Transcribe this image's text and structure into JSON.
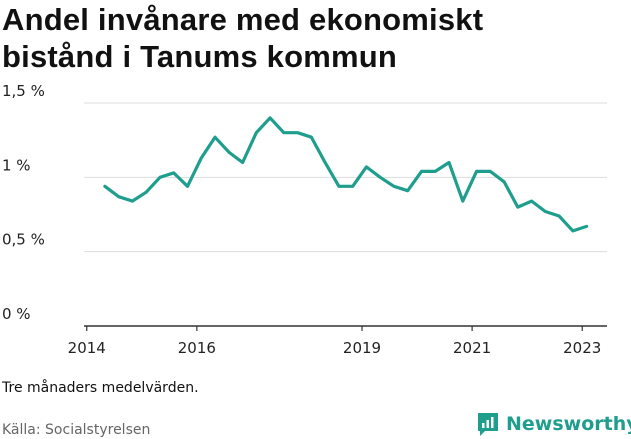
{
  "title": "Andel invånare med ekonomiskt bistånd i Tanums kommun",
  "note": "Tre månaders medelvärden.",
  "source": "Källa: Socialstyrelsen",
  "brand": {
    "name": "Newsworthy",
    "color": "#1f9e8e",
    "icon": "newsworthy-chart-icon"
  },
  "chart_data": {
    "type": "line",
    "title": "Andel invånare med ekonomiskt bistånd i Tanums kommun",
    "xlabel": "",
    "ylabel": "",
    "ylim": [
      0,
      1.5
    ],
    "xlim": [
      2013.95,
      2023.45
    ],
    "y_ticks": [
      {
        "value": 0,
        "label": "0 %"
      },
      {
        "value": 0.5,
        "label": "0,5 %"
      },
      {
        "value": 1,
        "label": "1 %"
      },
      {
        "value": 1.5,
        "label": "1,5 %"
      }
    ],
    "x_ticks": [
      {
        "value": 2014,
        "label": "2014"
      },
      {
        "value": 2016,
        "label": "2016"
      },
      {
        "value": 2019,
        "label": "2019"
      },
      {
        "value": 2021,
        "label": "2021"
      },
      {
        "value": 2023,
        "label": "2023"
      }
    ],
    "grid": true,
    "line_color": "#1f9e8e",
    "series": [
      {
        "x": [
          2014.33,
          2014.58,
          2014.83,
          2015.08,
          2015.33,
          2015.58,
          2015.83,
          2016.08,
          2016.33,
          2016.58,
          2016.83,
          2017.08,
          2017.33,
          2017.58,
          2017.83,
          2018.08,
          2018.33,
          2018.58,
          2018.83,
          2019.08,
          2019.33,
          2019.58,
          2019.83,
          2020.08,
          2020.33,
          2020.58,
          2020.83,
          2021.08,
          2021.33,
          2021.58,
          2021.83,
          2022.08,
          2022.33,
          2022.58,
          2022.83,
          2023.08
        ],
        "values": [
          0.94,
          0.87,
          0.84,
          0.9,
          1.0,
          1.03,
          0.94,
          1.13,
          1.27,
          1.17,
          1.1,
          1.3,
          1.4,
          1.3,
          1.3,
          1.27,
          1.1,
          0.94,
          0.94,
          1.07,
          1.0,
          0.94,
          0.91,
          1.04,
          1.04,
          1.1,
          0.84,
          1.04,
          1.04,
          0.97,
          0.8,
          0.84,
          0.77,
          0.74,
          0.64,
          0.67
        ]
      }
    ]
  }
}
